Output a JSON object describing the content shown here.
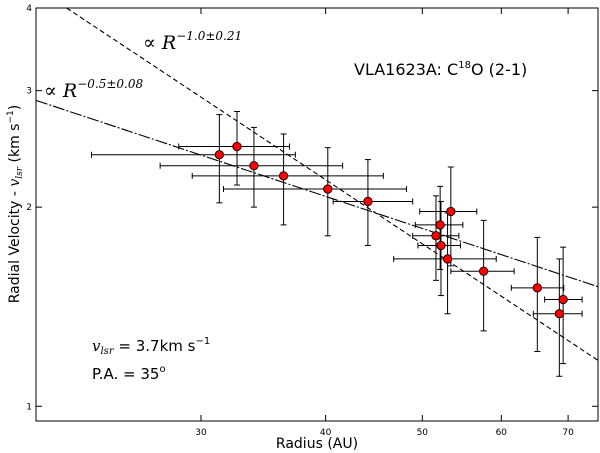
{
  "chart_data": {
    "type": "scatter",
    "title": "VLA1623A: C18O (2-1)",
    "title_parts": {
      "main": "VLA1623A: C",
      "sup": "18",
      "rest": "O (2-1)"
    },
    "xlabel": "Radius (AU)",
    "ylabel_parts": {
      "main": "Radial Velocity - ",
      "var": "v",
      "sub": "lsr",
      "unit_open": " (km s",
      "unit_sup": "−1",
      "unit_close": ")"
    },
    "xscale": "log",
    "yscale": "log",
    "xlim": [
      20.5,
      75
    ],
    "ylim": [
      0.95,
      4
    ],
    "xticks": [
      30,
      40,
      50,
      60,
      70
    ],
    "xtick_labels": [
      "30",
      "40",
      "50",
      "60",
      "70"
    ],
    "yticks": [
      1,
      2,
      3,
      4
    ],
    "ytick_labels": [
      "1",
      "2",
      "3",
      "4"
    ],
    "grid": false,
    "series": [
      {
        "name": "data",
        "marker": "circle",
        "color": "#ff0000",
        "points": [
          {
            "x": 31.3,
            "y": 2.4,
            "xerr": [
              23.3,
              37.3
            ],
            "yerr": [
              2.03,
              2.76
            ]
          },
          {
            "x": 32.6,
            "y": 2.47,
            "xerr": [
              28.5,
              36.8
            ],
            "yerr": [
              2.16,
              2.79
            ]
          },
          {
            "x": 33.9,
            "y": 2.31,
            "xerr": [
              27.3,
              41.6
            ],
            "yerr": [
              2.0,
              2.64
            ]
          },
          {
            "x": 36.3,
            "y": 2.23,
            "xerr": [
              29.4,
              45.7
            ],
            "yerr": [
              1.88,
              2.58
            ]
          },
          {
            "x": 40.2,
            "y": 2.13,
            "xerr": [
              31.6,
              48.2
            ],
            "yerr": [
              1.81,
              2.46
            ]
          },
          {
            "x": 44.1,
            "y": 2.04,
            "xerr": [
              40.7,
              48.9
            ],
            "yerr": [
              1.75,
              2.36
            ]
          },
          {
            "x": 53.4,
            "y": 1.97,
            "xerr": [
              49.7,
              56.7
            ],
            "yerr": [
              1.63,
              2.3
            ]
          },
          {
            "x": 52.1,
            "y": 1.88,
            "xerr": [
              49.2,
              54.9
            ],
            "yerr": [
              1.61,
              2.15
            ]
          },
          {
            "x": 51.6,
            "y": 1.81,
            "xerr": [
              48.9,
              54.4
            ],
            "yerr": [
              1.55,
              2.08
            ]
          },
          {
            "x": 52.2,
            "y": 1.75,
            "xerr": [
              49.5,
              54.6
            ],
            "yerr": [
              1.47,
              2.04
            ]
          },
          {
            "x": 53.0,
            "y": 1.67,
            "xerr": [
              46.8,
              59.3
            ],
            "yerr": [
              1.38,
              1.96
            ]
          },
          {
            "x": 57.6,
            "y": 1.6,
            "xerr": [
              53.4,
              61.8
            ],
            "yerr": [
              1.3,
              1.91
            ]
          },
          {
            "x": 65.2,
            "y": 1.51,
            "xerr": [
              61.4,
              69.3
            ],
            "yerr": [
              1.21,
              1.8
            ]
          },
          {
            "x": 69.2,
            "y": 1.45,
            "xerr": [
              66.3,
              72.3
            ],
            "yerr": [
              1.16,
              1.74
            ]
          },
          {
            "x": 68.6,
            "y": 1.38,
            "xerr": [
              64.6,
              72.3
            ],
            "yerr": [
              1.11,
              1.67
            ]
          }
        ]
      }
    ],
    "fits": [
      {
        "name": "steep fit",
        "style": "dashed",
        "label": "∝ R",
        "exponent": "−1.0±0.21",
        "slope": -1.0,
        "x0": 22.0,
        "y0": 4.0
      },
      {
        "name": "shallow fit",
        "style": "dashdot",
        "label": "∝ R",
        "exponent": "−0.5±0.08",
        "slope": -0.5,
        "x0": 20.5,
        "y0": 2.9
      }
    ],
    "annotations": {
      "vlsr": {
        "var": "v",
        "sub": "lsr",
        "text": " = 3.7km s",
        "sup": "−1"
      },
      "pa": {
        "text": "P.A. = 35",
        "sup": "o"
      }
    }
  }
}
